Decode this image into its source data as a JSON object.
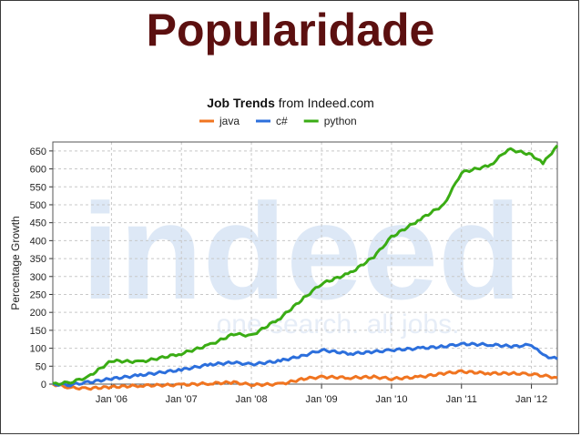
{
  "slide": {
    "title": "Popularidade"
  },
  "chart_data": {
    "type": "line",
    "title": "Job Trends",
    "title_suffix": "from Indeed.com",
    "ylabel": "Percentage Growth",
    "ylim": [
      0,
      675
    ],
    "yticks": [
      0,
      50,
      100,
      150,
      200,
      250,
      300,
      350,
      400,
      450,
      500,
      550,
      600,
      650
    ],
    "xlim": [
      "2005-03-01",
      "2012-05-15"
    ],
    "xticks": [
      {
        "date": "2006-01-01",
        "label": "Jan '06"
      },
      {
        "date": "2007-01-01",
        "label": "Jan '07"
      },
      {
        "date": "2008-01-01",
        "label": "Jan '08"
      },
      {
        "date": "2009-01-01",
        "label": "Jan '09"
      },
      {
        "date": "2010-01-01",
        "label": "Jan '10"
      },
      {
        "date": "2011-01-01",
        "label": "Jan '11"
      },
      {
        "date": "2012-01-01",
        "label": "Jan '12"
      }
    ],
    "grid": true,
    "legend_position": "top",
    "watermark": "indeed",
    "watermark_tagline": "one search. all jobs.",
    "series": [
      {
        "name": "java",
        "color": "#f07420",
        "points": [
          [
            "2005-03-01",
            0
          ],
          [
            "2005-06-01",
            -10
          ],
          [
            "2005-09-01",
            -12
          ],
          [
            "2006-01-01",
            -8
          ],
          [
            "2006-06-01",
            -4
          ],
          [
            "2007-01-01",
            -2
          ],
          [
            "2007-06-01",
            2
          ],
          [
            "2007-10-01",
            5
          ],
          [
            "2008-01-01",
            -2
          ],
          [
            "2008-06-01",
            0
          ],
          [
            "2008-10-01",
            15
          ],
          [
            "2009-01-01",
            20
          ],
          [
            "2009-06-01",
            18
          ],
          [
            "2009-10-01",
            20
          ],
          [
            "2010-01-01",
            15
          ],
          [
            "2010-06-01",
            20
          ],
          [
            "2010-10-01",
            30
          ],
          [
            "2011-01-01",
            35
          ],
          [
            "2011-06-01",
            30
          ],
          [
            "2011-10-01",
            30
          ],
          [
            "2012-01-01",
            28
          ],
          [
            "2012-05-15",
            18
          ]
        ]
      },
      {
        "name": "c#",
        "color": "#2c6fdc",
        "points": [
          [
            "2005-03-01",
            0
          ],
          [
            "2005-06-01",
            -2
          ],
          [
            "2005-09-01",
            5
          ],
          [
            "2006-01-01",
            15
          ],
          [
            "2006-06-01",
            25
          ],
          [
            "2007-01-01",
            40
          ],
          [
            "2007-06-01",
            55
          ],
          [
            "2007-10-01",
            60
          ],
          [
            "2008-01-01",
            55
          ],
          [
            "2008-06-01",
            65
          ],
          [
            "2008-10-01",
            80
          ],
          [
            "2009-01-01",
            95
          ],
          [
            "2009-06-01",
            85
          ],
          [
            "2009-10-01",
            90
          ],
          [
            "2010-01-01",
            95
          ],
          [
            "2010-06-01",
            100
          ],
          [
            "2010-10-01",
            105
          ],
          [
            "2011-01-01",
            112
          ],
          [
            "2011-06-01",
            110
          ],
          [
            "2011-10-01",
            105
          ],
          [
            "2012-01-01",
            110
          ],
          [
            "2012-03-01",
            80
          ],
          [
            "2012-05-15",
            70
          ]
        ]
      },
      {
        "name": "python",
        "color": "#3aac14",
        "points": [
          [
            "2005-03-01",
            0
          ],
          [
            "2005-06-01",
            5
          ],
          [
            "2005-09-01",
            20
          ],
          [
            "2006-01-01",
            65
          ],
          [
            "2006-06-01",
            62
          ],
          [
            "2007-01-01",
            85
          ],
          [
            "2007-06-01",
            110
          ],
          [
            "2007-10-01",
            140
          ],
          [
            "2008-01-01",
            135
          ],
          [
            "2008-06-01",
            185
          ],
          [
            "2008-10-01",
            240
          ],
          [
            "2009-01-01",
            280
          ],
          [
            "2009-06-01",
            310
          ],
          [
            "2009-10-01",
            355
          ],
          [
            "2010-01-01",
            410
          ],
          [
            "2010-06-01",
            460
          ],
          [
            "2010-10-01",
            500
          ],
          [
            "2011-01-01",
            590
          ],
          [
            "2011-06-01",
            610
          ],
          [
            "2011-09-01",
            655
          ],
          [
            "2012-01-01",
            640
          ],
          [
            "2012-03-01",
            615
          ],
          [
            "2012-05-15",
            665
          ]
        ]
      }
    ]
  }
}
